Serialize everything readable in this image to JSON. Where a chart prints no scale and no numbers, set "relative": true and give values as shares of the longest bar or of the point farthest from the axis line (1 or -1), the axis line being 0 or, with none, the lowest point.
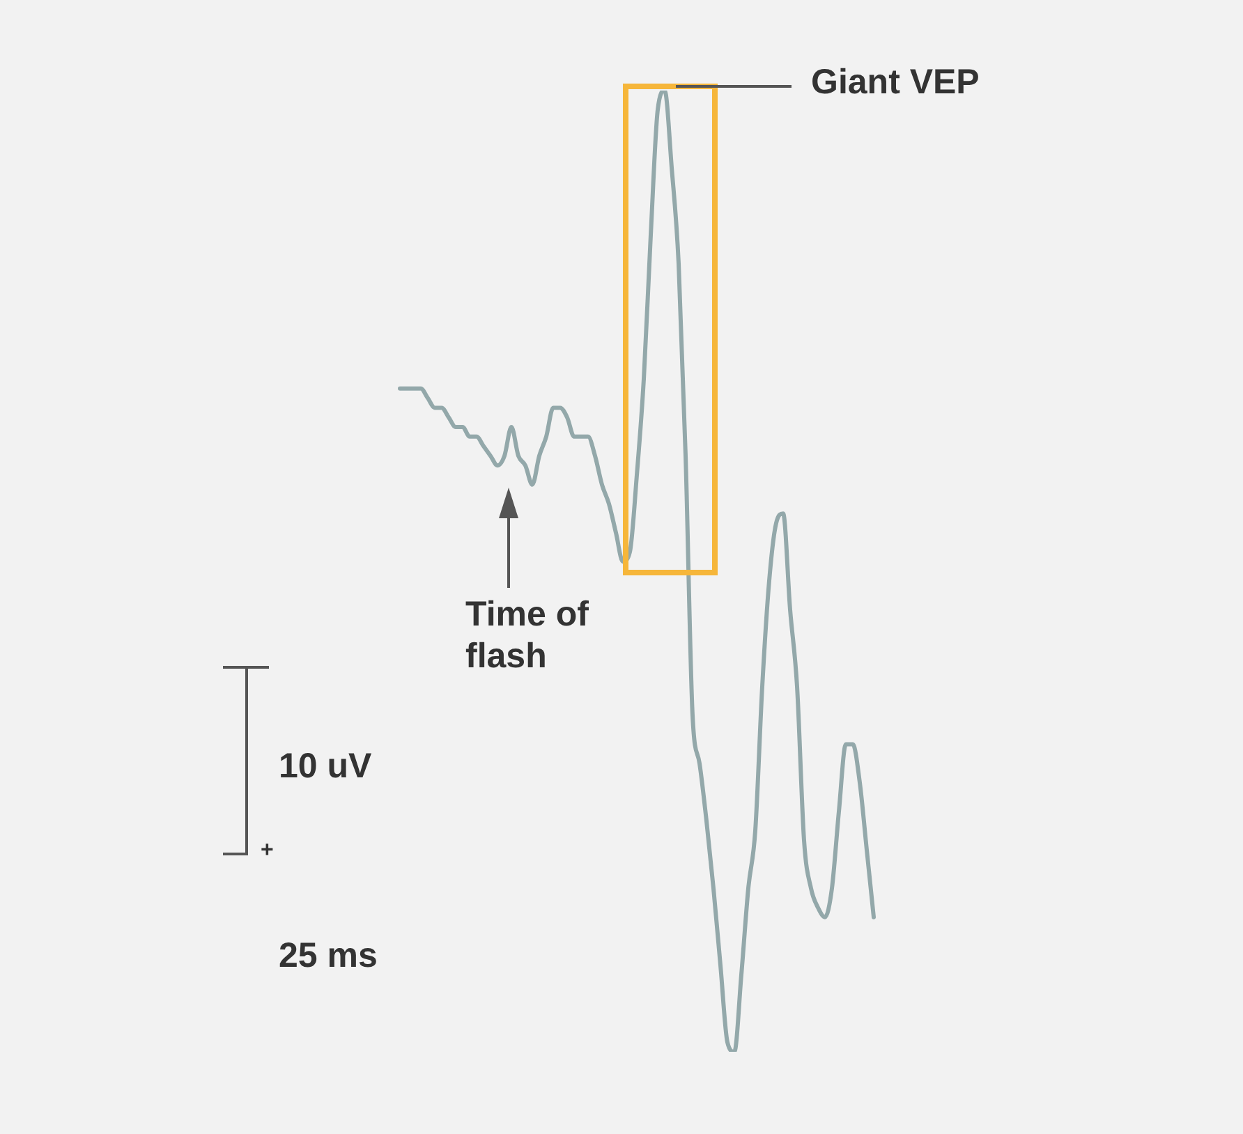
{
  "chart_data": {
    "type": "line",
    "relative": true,
    "legend": false,
    "marker": "none",
    "line_style": "solid",
    "categories": [
      null,
      null,
      null,
      null,
      null,
      null,
      null,
      null,
      null,
      null,
      null,
      null,
      null,
      null,
      null,
      null,
      null,
      null,
      null,
      null,
      null,
      null,
      null,
      null,
      null,
      null,
      null,
      null,
      null,
      null,
      null,
      null,
      null,
      null,
      null,
      null,
      null,
      null,
      null,
      null,
      null,
      null,
      null,
      null,
      null,
      null,
      null,
      null,
      null,
      null,
      null,
      null,
      null,
      null,
      null,
      null,
      null,
      null,
      null,
      null,
      null,
      null,
      null,
      null,
      null,
      null,
      null,
      null,
      null
    ],
    "series": [
      {
        "color": "#93a8aa",
        "values": [
          0.69,
          0.69,
          0.69,
          0.69,
          0.68,
          0.67,
          0.67,
          0.66,
          0.65,
          0.65,
          0.64,
          0.64,
          0.63,
          0.62,
          0.61,
          0.62,
          0.65,
          0.62,
          0.61,
          0.59,
          0.62,
          0.64,
          0.67,
          0.67,
          0.66,
          0.64,
          0.64,
          0.64,
          0.62,
          0.59,
          0.57,
          0.54,
          0.51,
          0.52,
          0.6,
          0.7,
          0.85,
          0.98,
          1,
          0.92,
          0.82,
          0.62,
          0.35,
          0.3,
          0.24,
          0.17,
          0.09,
          0.01,
          0,
          0.08,
          0.17,
          0.23,
          0.38,
          0.49,
          0.55,
          0.56,
          0.46,
          0.38,
          0.22,
          0.17,
          0.15,
          0.14,
          0.17,
          0.25,
          0.32,
          0.32,
          0.28,
          0.21,
          0.14
        ]
      }
    ],
    "annotations": [
      "Giant VEP",
      "Time of flash",
      "10 uV",
      "+",
      "25 ms"
    ]
  }
}
